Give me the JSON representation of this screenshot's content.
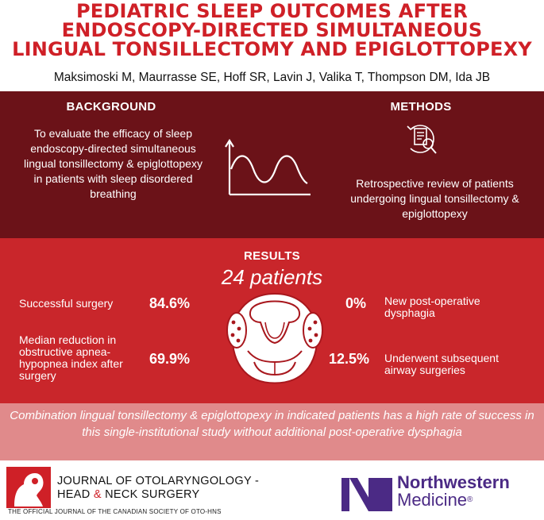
{
  "header": {
    "title_line1": "PEDIATRIC SLEEP OUTCOMES AFTER",
    "title_line2": "ENDOSCOPY-DIRECTED SIMULTANEOUS",
    "title_line3": "LINGUAL TONSILLECTOMY AND EPIGLOTTOPEXY",
    "authors": "Maksimoski M, Maurrasse SE, Hoff SR, Lavin J, Valika T, Thompson DM, Ida JB"
  },
  "background": {
    "heading": "BACKGROUND",
    "text": "To evaluate the efficacy of sleep endoscopy-directed simultaneous lingual tonsillectomy & epiglottopexy in patients with sleep disordered breathing"
  },
  "methods": {
    "heading": "METHODS",
    "text": "Retrospective review of patients undergoing lingual tonsillectomy & epiglottopexy"
  },
  "results": {
    "heading": "RESULTS",
    "subheading": "24 patients",
    "stats": [
      {
        "label": "Successful surgery",
        "value": "84.6%"
      },
      {
        "label": "Median reduction in obstructive apnea-hypopnea index after surgery",
        "value": "69.9%"
      },
      {
        "label": "New post-operative dysphagia",
        "value": "0%"
      },
      {
        "label": "Underwent subsequent airway surgeries",
        "value": "12.5%"
      }
    ]
  },
  "conclusion": "Combination lingual tonsillectomy & epiglottopexy in indicated patients has a high rate of success in this single-institutional study without additional post-operative dysphagia",
  "footer": {
    "journal_line1": "JOURNAL OF OTOLARYNGOLOGY -",
    "journal_line2_a": "HEAD ",
    "journal_line2_amp": "&",
    "journal_line2_b": " NECK SURGERY",
    "journal_sub": "THE OFFICIAL JOURNAL OF THE CANADIAN SOCIETY OF OTO-HNS",
    "nm_line1": "Northwestern",
    "nm_line2": "Medicine",
    "nm_reg": "®"
  },
  "colors": {
    "title_red": "#cf2027",
    "band_dark": "#6b1218",
    "band_red": "#c9262b",
    "band_pink": "#e08a8b",
    "nm_purple": "#4b2a85"
  },
  "icons": [
    "sine-wave-icon",
    "document-magnifier-icon",
    "throat-anatomy-icon",
    "journal-logo-icon",
    "northwestern-logo-icon"
  ]
}
